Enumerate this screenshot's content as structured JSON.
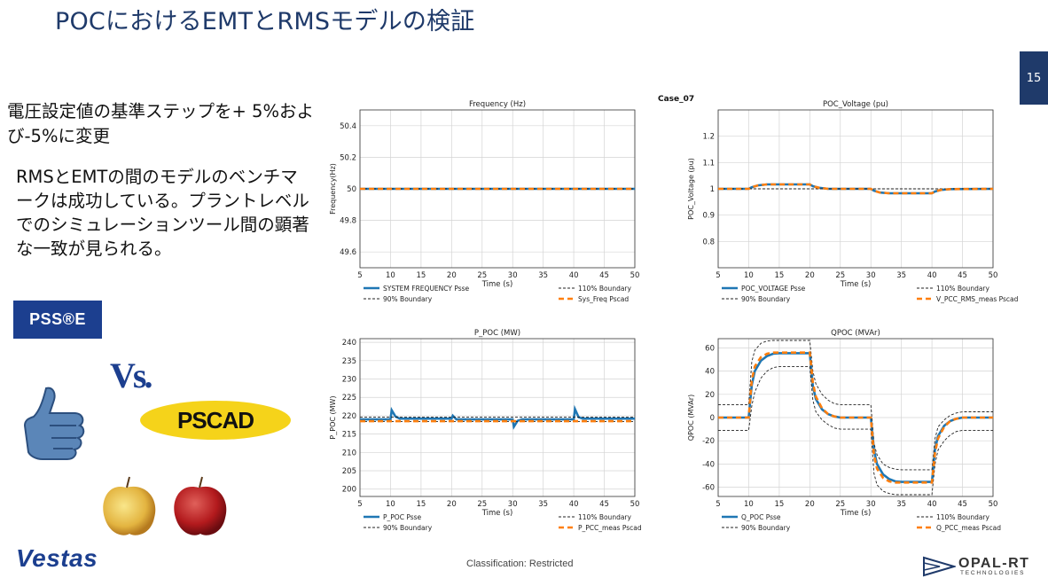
{
  "slide": {
    "title": "POCにおけるEMTとRMSモデルの検証",
    "page_number": "15",
    "bullet1": "電圧設定値の基準ステップを+ 5%および-5%に変更",
    "bullet2": "RMSとEMTの間のモデルのベンチマークは成功している。プラントレベルでのシミュレーションツール間の顕著な一致が見られる。",
    "logo_psse": "PSS®E",
    "vs_label": "Vs.",
    "logo_pscad": "PSCAD",
    "logo_vestas": "Vestas",
    "classification": "Classification: Restricted",
    "logo_opal": "OPAL-RT",
    "logo_opal_sub": "TECHNOLOGIES",
    "case_label": "Case_07",
    "colors": {
      "title": "#1f3a6a",
      "psse_series": "#1f77b4",
      "pscad_series": "#ff7f0e",
      "boundary": "#222222"
    }
  },
  "chart_data": [
    {
      "type": "line",
      "title": "Frequency (Hz)",
      "xlabel": "Time (s)",
      "ylabel": "Frequency(Hz)",
      "xlim": [
        5,
        50
      ],
      "ylim": [
        49.5,
        50.5
      ],
      "xticks": [
        5,
        10,
        15,
        20,
        25,
        30,
        35,
        40,
        45,
        50
      ],
      "yticks": [
        49.6,
        49.8,
        50.0,
        50.2,
        50.4
      ],
      "grid": true,
      "legend_placement": "bottom",
      "legend": [
        "SYSTEM FREQUENCY Psse",
        "110% Boundary",
        "90% Boundary",
        "Sys_Freq Pscad"
      ],
      "series": [
        {
          "name": "SYSTEM FREQUENCY Psse",
          "x": [
            5,
            50
          ],
          "values": [
            50.0,
            50.0
          ]
        },
        {
          "name": "110% Boundary",
          "x": [
            5,
            50
          ],
          "values": [
            50.0,
            50.0
          ]
        },
        {
          "name": "90% Boundary",
          "x": [
            5,
            50
          ],
          "values": [
            50.0,
            50.0
          ]
        },
        {
          "name": "Sys_Freq Pscad",
          "x": [
            5,
            50
          ],
          "values": [
            50.0,
            50.0
          ]
        }
      ]
    },
    {
      "type": "line",
      "title": "POC_Voltage (pu)",
      "xlabel": "Time (s)",
      "ylabel": "POC_Voltage (pu)",
      "xlim": [
        5,
        50
      ],
      "ylim": [
        0.7,
        1.3
      ],
      "xticks": [
        5,
        10,
        15,
        20,
        25,
        30,
        35,
        40,
        45,
        50
      ],
      "yticks": [
        0.8,
        0.9,
        1.0,
        1.1,
        1.2
      ],
      "grid": true,
      "legend_placement": "bottom",
      "legend": [
        "POC_VOLTAGE Psse",
        "110% Boundary",
        "90% Boundary",
        "V_PCC_RMS_meas Pscad"
      ],
      "series": [
        {
          "name": "POC_VOLTAGE Psse",
          "x": [
            5,
            10,
            10.5,
            11.5,
            13,
            20,
            20.5,
            21.5,
            23,
            30,
            30.5,
            31.5,
            33,
            40,
            40.5,
            41.5,
            43,
            50
          ],
          "values": [
            1.0,
            1.0,
            1.006,
            1.013,
            1.017,
            1.017,
            1.01,
            1.004,
            1.0,
            1.0,
            0.993,
            0.986,
            0.983,
            0.983,
            0.99,
            0.996,
            0.999,
            1.0
          ]
        },
        {
          "name": "110% Boundary",
          "x": [
            5,
            50
          ],
          "values": [
            1.0,
            1.0
          ]
        },
        {
          "name": "90% Boundary",
          "x": [
            5,
            50
          ],
          "values": [
            1.0,
            1.0
          ]
        },
        {
          "name": "V_PCC_RMS_meas Pscad",
          "x": [
            5,
            10,
            10.5,
            11.5,
            13,
            20,
            20.5,
            21.5,
            23,
            30,
            30.5,
            31.5,
            33,
            40,
            40.5,
            41.5,
            43,
            50
          ],
          "values": [
            1.0,
            1.0,
            1.006,
            1.013,
            1.017,
            1.017,
            1.01,
            1.004,
            1.0,
            1.0,
            0.993,
            0.986,
            0.983,
            0.983,
            0.99,
            0.996,
            0.999,
            1.0
          ]
        }
      ]
    },
    {
      "type": "line",
      "title": "P_POC (MW)",
      "xlabel": "Time (s)",
      "ylabel": "P_POC (MW)",
      "xlim": [
        5,
        50
      ],
      "ylim": [
        198,
        241
      ],
      "xticks": [
        5,
        10,
        15,
        20,
        25,
        30,
        35,
        40,
        45,
        50
      ],
      "yticks": [
        200,
        205,
        210,
        215,
        220,
        225,
        230,
        235,
        240
      ],
      "grid": true,
      "legend_placement": "bottom",
      "legend": [
        "P_POC Psse",
        "110% Boundary",
        "90% Boundary",
        "P_PCC_meas Pscad"
      ],
      "series": [
        {
          "name": "P_POC Psse",
          "x": [
            5,
            10,
            10.2,
            10.8,
            11.5,
            20,
            20.2,
            20.8,
            21.5,
            30,
            30.2,
            30.8,
            31.5,
            40,
            40.2,
            40.8,
            41.5,
            50
          ],
          "values": [
            219.0,
            219.0,
            221.5,
            219.8,
            219.2,
            219.2,
            220.0,
            219.0,
            219.0,
            219.0,
            217.0,
            218.6,
            219.0,
            219.0,
            221.8,
            219.6,
            219.2,
            219.2
          ]
        },
        {
          "name": "110% Boundary",
          "x": [
            5,
            50
          ],
          "values": [
            219.6,
            219.6
          ]
        },
        {
          "name": "90% Boundary",
          "x": [
            5,
            50
          ],
          "values": [
            218.4,
            218.4
          ]
        },
        {
          "name": "P_PCC_meas Pscad",
          "x": [
            5,
            50
          ],
          "values": [
            218.5,
            218.5
          ]
        }
      ]
    },
    {
      "type": "line",
      "title": "QPOC (MVAr)",
      "xlabel": "Time (s)",
      "ylabel": "QPOC (MVAr)",
      "xlim": [
        5,
        50
      ],
      "ylim": [
        -68,
        68
      ],
      "xticks": [
        5,
        10,
        15,
        20,
        25,
        30,
        35,
        40,
        45,
        50
      ],
      "yticks": [
        -60,
        -40,
        -20,
        0,
        20,
        40,
        60
      ],
      "grid": true,
      "legend_placement": "bottom",
      "legend": [
        "Q_POC Psse",
        "110% Boundary",
        "90% Boundary",
        "Q_PCC_meas Pscad"
      ],
      "series": [
        {
          "name": "Q_POC Psse",
          "x": [
            5,
            10,
            10.5,
            11,
            12,
            13,
            14,
            15,
            20,
            20.5,
            21,
            22,
            23,
            24,
            25,
            30,
            30.5,
            31,
            32,
            33,
            34,
            35,
            40,
            40.5,
            41,
            42,
            43,
            44,
            45,
            50
          ],
          "values": [
            0,
            0,
            28,
            40,
            49,
            53,
            55,
            55.5,
            55.5,
            27,
            16,
            7,
            3,
            1,
            0,
            0,
            -28,
            -40,
            -49,
            -53,
            -55,
            -55.5,
            -55.5,
            -27,
            -16,
            -7,
            -3,
            -1,
            0,
            0
          ]
        },
        {
          "name": "110% Boundary",
          "x": [
            5,
            10,
            10.5,
            11,
            12,
            13,
            14,
            15,
            20,
            20.5,
            21,
            22,
            23,
            24,
            25,
            30,
            30.5,
            31,
            32,
            33,
            34,
            35,
            40,
            40.5,
            41,
            42,
            43,
            44,
            45,
            50
          ],
          "values": [
            11,
            11,
            48,
            58,
            64,
            66,
            66.5,
            66.5,
            66.5,
            40,
            29,
            20,
            15,
            12,
            11,
            11,
            -22,
            -32,
            -40,
            -43,
            -44.5,
            -45,
            -45,
            -18,
            -8,
            -2,
            2,
            4,
            5,
            5
          ]
        },
        {
          "name": "90% Boundary",
          "x": [
            5,
            10,
            10.5,
            11,
            12,
            13,
            14,
            15,
            20,
            20.5,
            21,
            22,
            23,
            24,
            25,
            30,
            30.5,
            31,
            32,
            33,
            34,
            35,
            40,
            40.5,
            41,
            42,
            43,
            44,
            45,
            50
          ],
          "values": [
            -11,
            -11,
            10,
            22,
            34,
            40,
            43,
            44,
            44,
            15,
            5,
            -2,
            -6,
            -9,
            -10,
            -10,
            -48,
            -58,
            -63.5,
            -65.5,
            -66.5,
            -66.5,
            -66.5,
            -40,
            -28,
            -20,
            -15,
            -12,
            -11,
            -11
          ]
        },
        {
          "name": "Q_PCC_meas Pscad",
          "x": [
            5,
            10,
            10.5,
            11,
            12,
            13,
            14,
            15,
            20,
            20.5,
            21,
            22,
            23,
            24,
            25,
            30,
            30.5,
            31,
            32,
            33,
            34,
            35,
            40,
            40.5,
            41,
            42,
            43,
            44,
            45,
            50
          ],
          "values": [
            0,
            0,
            32,
            44,
            52,
            55,
            56,
            56,
            56,
            30,
            18,
            8,
            3,
            1,
            0,
            0,
            -32,
            -44,
            -52,
            -55,
            -56,
            -56,
            -56,
            -30,
            -18,
            -8,
            -3,
            -1,
            0,
            0
          ]
        }
      ]
    }
  ]
}
